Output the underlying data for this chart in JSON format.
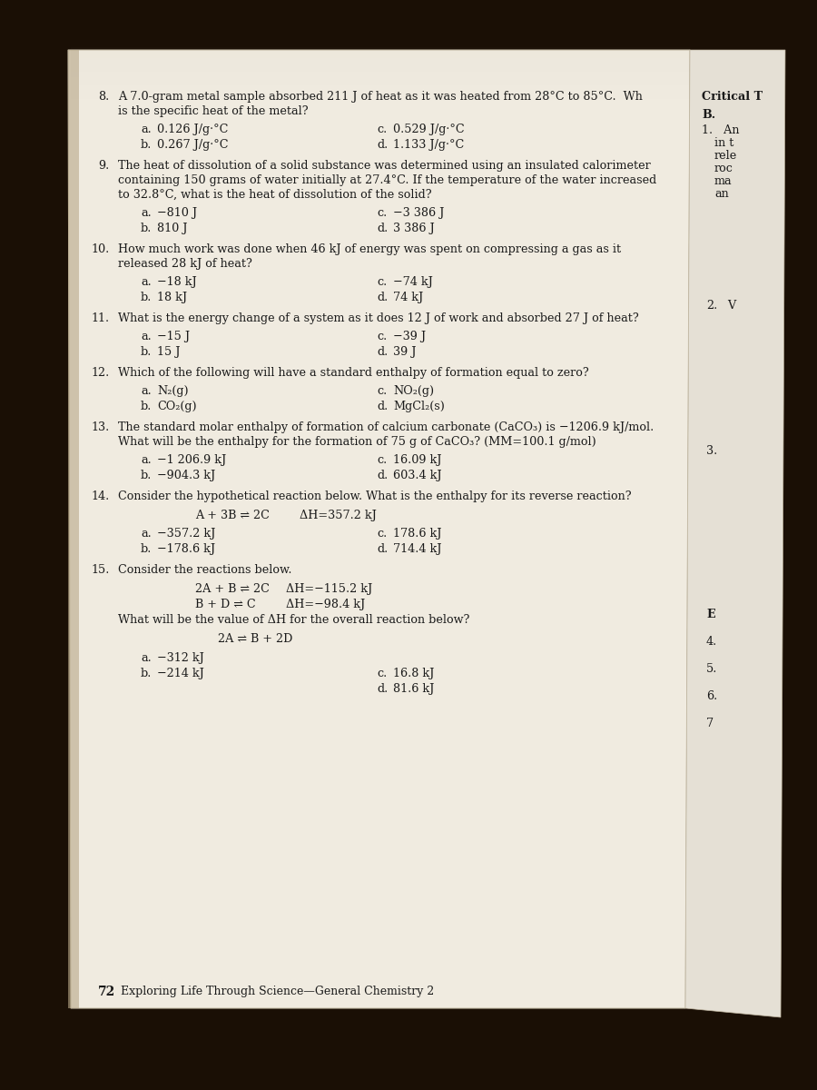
{
  "dark_bg": "#1a0f05",
  "page_bg": "#f0ebe0",
  "page_bg2": "#e8e3d8",
  "right_page_bg": "#e5e0d5",
  "text_color": "#1a1a1a",
  "page_number": "72",
  "footer": "Exploring Life Through Science—General Chemistry 2",
  "q8_line1": "A 7.0-gram metal sample absorbed 211 J of heat as it was heated from 28°C to 85°C.  Wh",
  "q8_line2": "is the specific heat of the metal?",
  "q8_a": "0.126 J/g·°C",
  "q8_b": "0.267 J/g·°C",
  "q8_c": "0.529 J/g·°C",
  "q8_d": "1.133 J/g·°C",
  "q9_line1": "The heat of dissolution of a solid substance was determined using an insulated calorimeter",
  "q9_line2": "containing 150 grams of water initially at 27.4°C. If the temperature of the water increased",
  "q9_line3": "to 32.8°C, what is the heat of dissolution of the solid?",
  "q9_a": "−810 J",
  "q9_b": "810 J",
  "q9_c": "−3 386 J",
  "q9_d": "3 386 J",
  "q10_line1": "How much work was done when 46 kJ of energy was spent on compressing a gas as it",
  "q10_line2": "released 28 kJ of heat?",
  "q10_a": "−18 kJ",
  "q10_b": "18 kJ",
  "q10_c": "−74 kJ",
  "q10_d": "74 kJ",
  "q11_line1": "What is the energy change of a system as it does 12 J of work and absorbed 27 J of heat?",
  "q11_a": "−15 J",
  "q11_b": "15 J",
  "q11_c": "−39 J",
  "q11_d": "39 J",
  "q12_line1": "Which of the following will have a standard enthalpy of formation equal to zero?",
  "q12_a": "N₂(g)",
  "q12_b": "CO₂(g)",
  "q12_c": "NO₂(g)",
  "q12_d": "MgCl₂(s)",
  "q13_line1": "The standard molar enthalpy of formation of calcium carbonate (CaCO₃) is −1206.9 kJ/mol.",
  "q13_line2": "What will be the enthalpy for the formation of 75 g of CaCO₃? (MM=100.1 g/mol)",
  "q13_a": "−1 206.9 kJ",
  "q13_b": "−904.3 kJ",
  "q13_c": "16.09 kJ",
  "q13_d": "603.4 kJ",
  "q14_line1": "Consider the hypothetical reaction below. What is the enthalpy for its reverse reaction?",
  "q14_reaction": "A + 3B ⇌ 2C",
  "q14_dh": "ΔH=357.2 kJ",
  "q14_a": "−357.2 kJ",
  "q14_b": "−178.6 kJ",
  "q14_c": "178.6 kJ",
  "q14_d": "714.4 kJ",
  "q15_line1": "Consider the reactions below.",
  "q15_r1": "2A + B ⇌ 2C",
  "q15_r1_dh": "ΔH=−115.2 kJ",
  "q15_r2": "B + D ⇌ C",
  "q15_r2_dh": "ΔH=−98.4 kJ",
  "q15_sub": "What will be the value of ΔH for the overall reaction below?",
  "q15_overall": "2A ⇌ B + 2D",
  "q15_a": "−312 kJ",
  "q15_b": "−214 kJ",
  "q15_c": "16.8 kJ",
  "q15_d": "81.6 kJ",
  "rc_header": "Critical T",
  "rc_b": "B.",
  "rc_1": "1.   An",
  "rc_in": "in t",
  "rc_rele": "rele",
  "rc_roc": "roc",
  "rc_ma": "ma",
  "rc_an": "an",
  "rc_2": "2.",
  "rc_v": "V",
  "rc_3": "3.",
  "rc_e": "E",
  "rc_4": "4.",
  "rc_5": "5.",
  "rc_6": "6.",
  "rc_7": "7"
}
